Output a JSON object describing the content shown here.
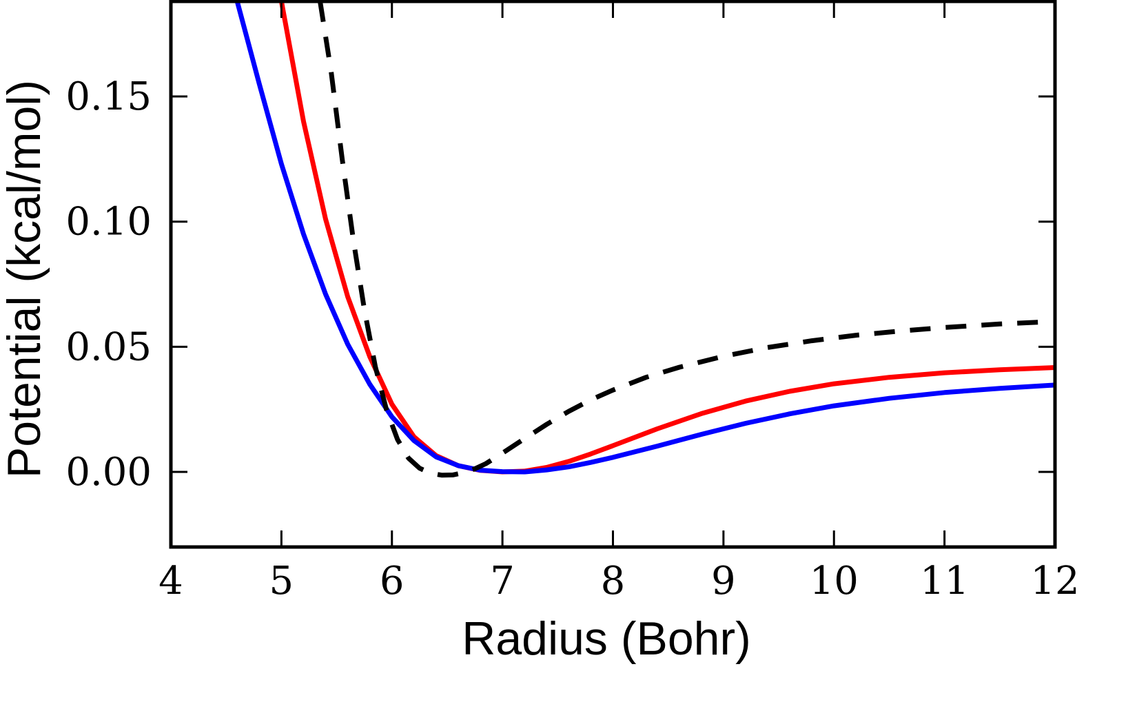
{
  "chart_data": {
    "type": "line",
    "xlabel": "Radius (Bohr)",
    "ylabel": "Potential (kcal/mol)",
    "xlim": [
      4,
      12
    ],
    "ylim": [
      -0.03,
      0.188
    ],
    "xticks": [
      4,
      5,
      6,
      7,
      8,
      9,
      10,
      11,
      12
    ],
    "yticks": [
      0.0,
      0.05,
      0.1,
      0.15
    ],
    "xtick_labels": [
      "4",
      "5",
      "6",
      "7",
      "8",
      "9",
      "10",
      "11",
      "12"
    ],
    "ytick_labels": [
      "0.00",
      "0.05",
      "0.10",
      "0.15"
    ],
    "grid": false,
    "legend": "none",
    "series": [
      {
        "color": "#ff0000",
        "style": "solid",
        "x": [
          5.0,
          5.2,
          5.4,
          5.6,
          5.8,
          6.0,
          6.2,
          6.4,
          6.6,
          6.8,
          7.0,
          7.2,
          7.4,
          7.6,
          7.8,
          8.0,
          8.4,
          8.8,
          9.2,
          9.6,
          10.0,
          10.5,
          11.0,
          11.5,
          12.0
        ],
        "y": [
          0.188,
          0.14,
          0.101,
          0.07,
          0.046,
          0.027,
          0.014,
          0.0065,
          0.0025,
          0.0006,
          0.0,
          0.0003,
          0.0018,
          0.0042,
          0.0072,
          0.0105,
          0.0172,
          0.0233,
          0.0283,
          0.0322,
          0.0352,
          0.0378,
          0.0396,
          0.0408,
          0.0417
        ]
      },
      {
        "color": "#0000ff",
        "style": "solid",
        "x": [
          4.6,
          4.8,
          5.0,
          5.2,
          5.4,
          5.6,
          5.8,
          6.0,
          6.2,
          6.4,
          6.6,
          6.8,
          7.0,
          7.2,
          7.4,
          7.6,
          7.8,
          8.0,
          8.4,
          8.8,
          9.2,
          9.6,
          10.0,
          10.5,
          11.0,
          11.5,
          12.0
        ],
        "y": [
          0.188,
          0.155,
          0.123,
          0.095,
          0.071,
          0.051,
          0.035,
          0.022,
          0.0125,
          0.006,
          0.0025,
          0.0007,
          0.0001,
          0.0,
          0.0008,
          0.002,
          0.0038,
          0.0058,
          0.0103,
          0.015,
          0.0194,
          0.0232,
          0.0264,
          0.0294,
          0.0317,
          0.0334,
          0.0347
        ]
      },
      {
        "color": "#000000",
        "style": "dashed",
        "x": [
          5.35,
          5.45,
          5.55,
          5.65,
          5.75,
          5.85,
          5.95,
          6.05,
          6.15,
          6.25,
          6.35,
          6.45,
          6.55,
          6.65,
          6.75,
          6.85,
          7.0,
          7.2,
          7.4,
          7.6,
          7.8,
          8.0,
          8.3,
          8.6,
          9.0,
          9.4,
          9.8,
          10.2,
          10.6,
          11.0,
          11.5,
          11.9
        ],
        "y": [
          0.188,
          0.16,
          0.125,
          0.093,
          0.065,
          0.042,
          0.025,
          0.013,
          0.0055,
          0.0015,
          -0.0005,
          -0.0013,
          -0.0012,
          -0.0003,
          0.0012,
          0.0033,
          0.0075,
          0.0133,
          0.019,
          0.0242,
          0.0288,
          0.0327,
          0.0378,
          0.0418,
          0.0462,
          0.0497,
          0.0524,
          0.0546,
          0.0563,
          0.0577,
          0.0591,
          0.0599
        ]
      }
    ]
  }
}
